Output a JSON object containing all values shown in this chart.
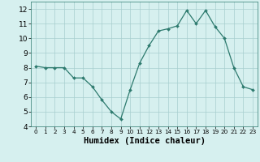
{
  "x": [
    0,
    1,
    2,
    3,
    4,
    5,
    6,
    7,
    8,
    9,
    10,
    11,
    12,
    13,
    14,
    15,
    16,
    17,
    18,
    19,
    20,
    21,
    22,
    23
  ],
  "y": [
    8.1,
    8.0,
    8.0,
    8.0,
    7.3,
    7.3,
    6.7,
    5.8,
    5.0,
    4.5,
    6.5,
    8.3,
    9.5,
    10.5,
    10.65,
    10.85,
    11.9,
    11.0,
    11.9,
    10.8,
    10.0,
    8.0,
    6.7,
    6.5
  ],
  "line_color": "#2d7a6e",
  "marker_color": "#2d7a6e",
  "bg_color": "#d6f0ef",
  "grid_color": "#a8cece",
  "xlabel": "Humidex (Indice chaleur)",
  "ylim": [
    4,
    12.5
  ],
  "xlim": [
    -0.5,
    23.5
  ],
  "yticks": [
    4,
    5,
    6,
    7,
    8,
    9,
    10,
    11,
    12
  ],
  "xticks": [
    0,
    1,
    2,
    3,
    4,
    5,
    6,
    7,
    8,
    9,
    10,
    11,
    12,
    13,
    14,
    15,
    16,
    17,
    18,
    19,
    20,
    21,
    22,
    23
  ],
  "xlabel_fontsize": 7.5,
  "tick_fontsize": 6.5,
  "xtick_fontsize": 5.2
}
